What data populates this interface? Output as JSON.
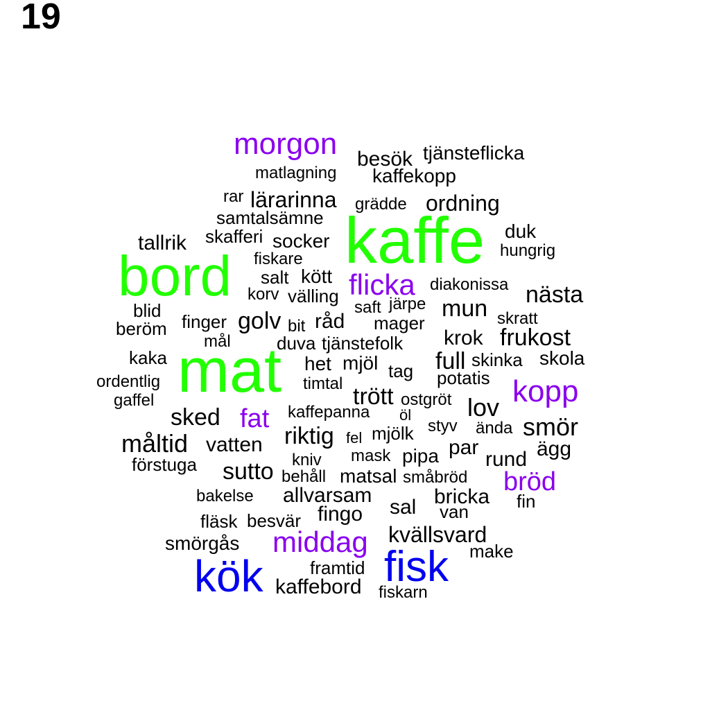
{
  "page_number": "19",
  "colors": {
    "top": "#22ff00",
    "second": "#0000ee",
    "third": "#8a00ee",
    "rest": "#000000"
  },
  "words": [
    {
      "text": "kaffe",
      "group": "top"
    },
    {
      "text": "bord",
      "group": "top"
    },
    {
      "text": "mat",
      "group": "top"
    },
    {
      "text": "kök",
      "group": "second"
    },
    {
      "text": "fisk",
      "group": "second"
    },
    {
      "text": "morgon",
      "group": "third"
    },
    {
      "text": "flicka",
      "group": "third"
    },
    {
      "text": "kopp",
      "group": "third"
    },
    {
      "text": "fat",
      "group": "third"
    },
    {
      "text": "middag",
      "group": "third"
    },
    {
      "text": "bröd",
      "group": "third"
    },
    {
      "text": "besök",
      "group": "rest"
    },
    {
      "text": "tjänsteflicka",
      "group": "rest"
    },
    {
      "text": "matlagning",
      "group": "rest"
    },
    {
      "text": "kaffekopp",
      "group": "rest"
    },
    {
      "text": "rar",
      "group": "rest"
    },
    {
      "text": "lärarinna",
      "group": "rest"
    },
    {
      "text": "grädde",
      "group": "rest"
    },
    {
      "text": "ordning",
      "group": "rest"
    },
    {
      "text": "samtalsämne",
      "group": "rest"
    },
    {
      "text": "skafferi",
      "group": "rest"
    },
    {
      "text": "socker",
      "group": "rest"
    },
    {
      "text": "tallrik",
      "group": "rest"
    },
    {
      "text": "duk",
      "group": "rest"
    },
    {
      "text": "hungrig",
      "group": "rest"
    },
    {
      "text": "fiskare",
      "group": "rest"
    },
    {
      "text": "salt",
      "group": "rest"
    },
    {
      "text": "kött",
      "group": "rest"
    },
    {
      "text": "diakonissa",
      "group": "rest"
    },
    {
      "text": "korv",
      "group": "rest"
    },
    {
      "text": "välling",
      "group": "rest"
    },
    {
      "text": "nästa",
      "group": "rest"
    },
    {
      "text": "blid",
      "group": "rest"
    },
    {
      "text": "saft",
      "group": "rest"
    },
    {
      "text": "järpe",
      "group": "rest"
    },
    {
      "text": "mun",
      "group": "rest"
    },
    {
      "text": "skratt",
      "group": "rest"
    },
    {
      "text": "beröm",
      "group": "rest"
    },
    {
      "text": "finger",
      "group": "rest"
    },
    {
      "text": "golv",
      "group": "rest"
    },
    {
      "text": "bit",
      "group": "rest"
    },
    {
      "text": "råd",
      "group": "rest"
    },
    {
      "text": "mager",
      "group": "rest"
    },
    {
      "text": "krok",
      "group": "rest"
    },
    {
      "text": "frukost",
      "group": "rest"
    },
    {
      "text": "mål",
      "group": "rest"
    },
    {
      "text": "duva",
      "group": "rest"
    },
    {
      "text": "tjänstefolk",
      "group": "rest"
    },
    {
      "text": "kaka",
      "group": "rest"
    },
    {
      "text": "het",
      "group": "rest"
    },
    {
      "text": "mjöl",
      "group": "rest"
    },
    {
      "text": "full",
      "group": "rest"
    },
    {
      "text": "skinka",
      "group": "rest"
    },
    {
      "text": "skola",
      "group": "rest"
    },
    {
      "text": "tag",
      "group": "rest"
    },
    {
      "text": "potatis",
      "group": "rest"
    },
    {
      "text": "ordentlig",
      "group": "rest"
    },
    {
      "text": "timtal",
      "group": "rest"
    },
    {
      "text": "gaffel",
      "group": "rest"
    },
    {
      "text": "trött",
      "group": "rest"
    },
    {
      "text": "ostgröt",
      "group": "rest"
    },
    {
      "text": "lov",
      "group": "rest"
    },
    {
      "text": "kaffepanna",
      "group": "rest"
    },
    {
      "text": "sked",
      "group": "rest"
    },
    {
      "text": "öl",
      "group": "rest"
    },
    {
      "text": "styv",
      "group": "rest"
    },
    {
      "text": "ända",
      "group": "rest"
    },
    {
      "text": "smör",
      "group": "rest"
    },
    {
      "text": "riktig",
      "group": "rest"
    },
    {
      "text": "fel",
      "group": "rest"
    },
    {
      "text": "mjölk",
      "group": "rest"
    },
    {
      "text": "måltid",
      "group": "rest"
    },
    {
      "text": "vatten",
      "group": "rest"
    },
    {
      "text": "par",
      "group": "rest"
    },
    {
      "text": "ägg",
      "group": "rest"
    },
    {
      "text": "förstuga",
      "group": "rest"
    },
    {
      "text": "kniv",
      "group": "rest"
    },
    {
      "text": "mask",
      "group": "rest"
    },
    {
      "text": "pipa",
      "group": "rest"
    },
    {
      "text": "rund",
      "group": "rest"
    },
    {
      "text": "sutto",
      "group": "rest"
    },
    {
      "text": "behåll",
      "group": "rest"
    },
    {
      "text": "matsal",
      "group": "rest"
    },
    {
      "text": "småbröd",
      "group": "rest"
    },
    {
      "text": "bakelse",
      "group": "rest"
    },
    {
      "text": "allvarsam",
      "group": "rest"
    },
    {
      "text": "bricka",
      "group": "rest"
    },
    {
      "text": "fin",
      "group": "rest"
    },
    {
      "text": "sal",
      "group": "rest"
    },
    {
      "text": "fingo",
      "group": "rest"
    },
    {
      "text": "van",
      "group": "rest"
    },
    {
      "text": "fläsk",
      "group": "rest"
    },
    {
      "text": "besvär",
      "group": "rest"
    },
    {
      "text": "kvällsvard",
      "group": "rest"
    },
    {
      "text": "smörgås",
      "group": "rest"
    },
    {
      "text": "make",
      "group": "rest"
    },
    {
      "text": "framtid",
      "group": "rest"
    },
    {
      "text": "kaffebord",
      "group": "rest"
    },
    {
      "text": "fiskarn",
      "group": "rest"
    }
  ]
}
